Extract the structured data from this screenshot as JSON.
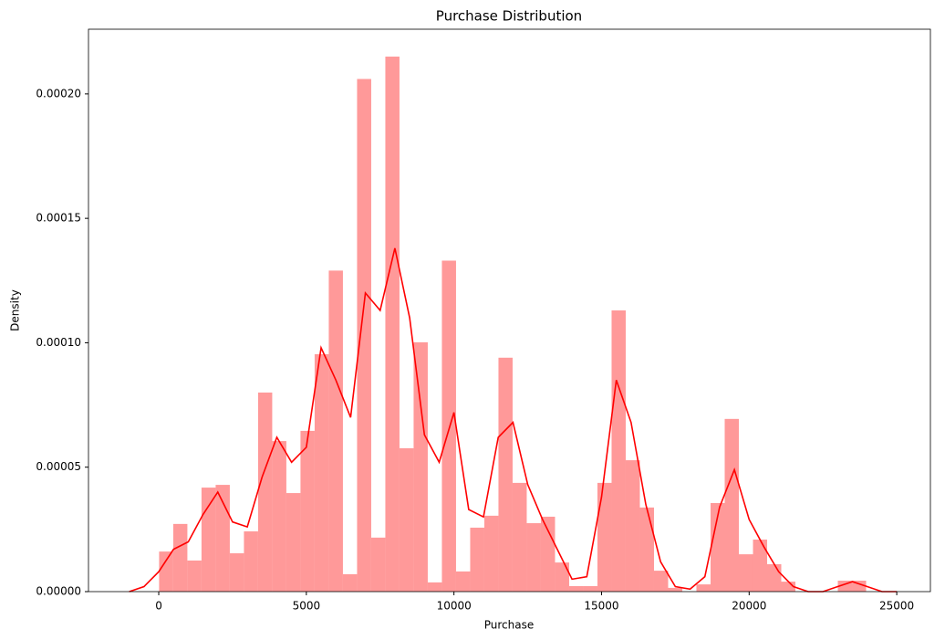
{
  "chart_data": {
    "type": "histogram",
    "title": "Purchase Distribution",
    "x_label": "Purchase",
    "y_label": "Density",
    "color": "#ff9999",
    "bins": [
      12,
      491,
      970,
      1449,
      1928,
      2407,
      2886,
      3365,
      3844,
      4323,
      4802,
      5281,
      5760,
      6239,
      6718,
      7197,
      7676,
      8155,
      8634,
      9113,
      9592,
      10071,
      10550,
      11029,
      11508,
      11987,
      12466,
      12945,
      13424,
      13903,
      14382,
      14861,
      15340,
      15819,
      16298,
      16777,
      17256,
      17735,
      18214,
      18693,
      19172,
      19651,
      20130,
      20609,
      21088,
      21567,
      22046,
      22525,
      23004,
      23483,
      23962
    ],
    "values": [
      1.61e-05,
      2.72e-05,
      1.25e-05,
      4.18e-05,
      4.29e-05,
      1.54e-05,
      2.42e-05,
      8e-05,
      6.05e-05,
      3.96e-05,
      6.46e-05,
      9.54e-05,
      0.000129,
      7e-06,
      0.000206,
      2.17e-05,
      0.000215,
      5.76e-05,
      0.0001002,
      3.7e-06,
      0.000133,
      8.1e-06,
      2.57e-05,
      3.05e-05,
      9.4e-05,
      4.37e-05,
      2.75e-05,
      3.01e-05,
      1.17e-05,
      2.2e-06,
      2.2e-06,
      4.37e-05,
      0.000113,
      5.28e-05,
      3.38e-05,
      8.4e-06,
      1.5e-06,
      0,
      2.9e-06,
      3.56e-05,
      6.94e-05,
      1.5e-05,
      2.09e-05,
      1.1e-05,
      4e-06,
      0,
      0,
      0,
      4.4e-06,
      4.4e-06
    ],
    "kde": {
      "color": "#ff0000",
      "x": [
        -1000,
        -500,
        0,
        500,
        1000,
        1500,
        2000,
        2500,
        3000,
        3500,
        4000,
        4500,
        5000,
        5500,
        6000,
        6500,
        7000,
        7500,
        8000,
        8500,
        9000,
        9500,
        10000,
        10500,
        11000,
        11500,
        12000,
        12500,
        13000,
        13500,
        14000,
        14500,
        15000,
        15500,
        16000,
        16500,
        17000,
        17500,
        18000,
        18500,
        19000,
        19500,
        20000,
        20500,
        21000,
        21500,
        22000,
        22500,
        23000,
        23500,
        24000,
        24500,
        25000
      ],
      "values": [
        0,
        2e-06,
        8e-06,
        1.7e-05,
        2e-05,
        3.1e-05,
        4e-05,
        2.8e-05,
        2.6e-05,
        4.6e-05,
        6.2e-05,
        5.2e-05,
        5.8e-05,
        9.8e-05,
        8.5e-05,
        7e-05,
        0.00012,
        0.000113,
        0.000138,
        0.00011,
        6.3e-05,
        5.2e-05,
        7.2e-05,
        3.3e-05,
        3e-05,
        6.2e-05,
        6.8e-05,
        4.3e-05,
        2.9e-05,
        1.7e-05,
        5e-06,
        6e-06,
        3.8e-05,
        8.5e-05,
        6.8e-05,
        3.5e-05,
        1.2e-05,
        2e-06,
        1e-06,
        6e-06,
        3.4e-05,
        4.9e-05,
        2.9e-05,
        1.8e-05,
        8e-06,
        2e-06,
        0,
        0,
        2e-06,
        4e-06,
        2e-06,
        0,
        0
      ]
    },
    "xlim": [
      -2380,
      26140
    ],
    "ylim": [
      0,
      0.000226
    ],
    "xticks": [
      0,
      5000,
      10000,
      15000,
      20000,
      25000
    ],
    "yticks": [
      {
        "value": 0,
        "label": "0.00000"
      },
      {
        "value": 5e-05,
        "label": "0.00005"
      },
      {
        "value": 0.0001,
        "label": "0.00010"
      },
      {
        "value": 0.00015,
        "label": "0.00015"
      },
      {
        "value": 0.0002,
        "label": "0.00020"
      }
    ]
  }
}
